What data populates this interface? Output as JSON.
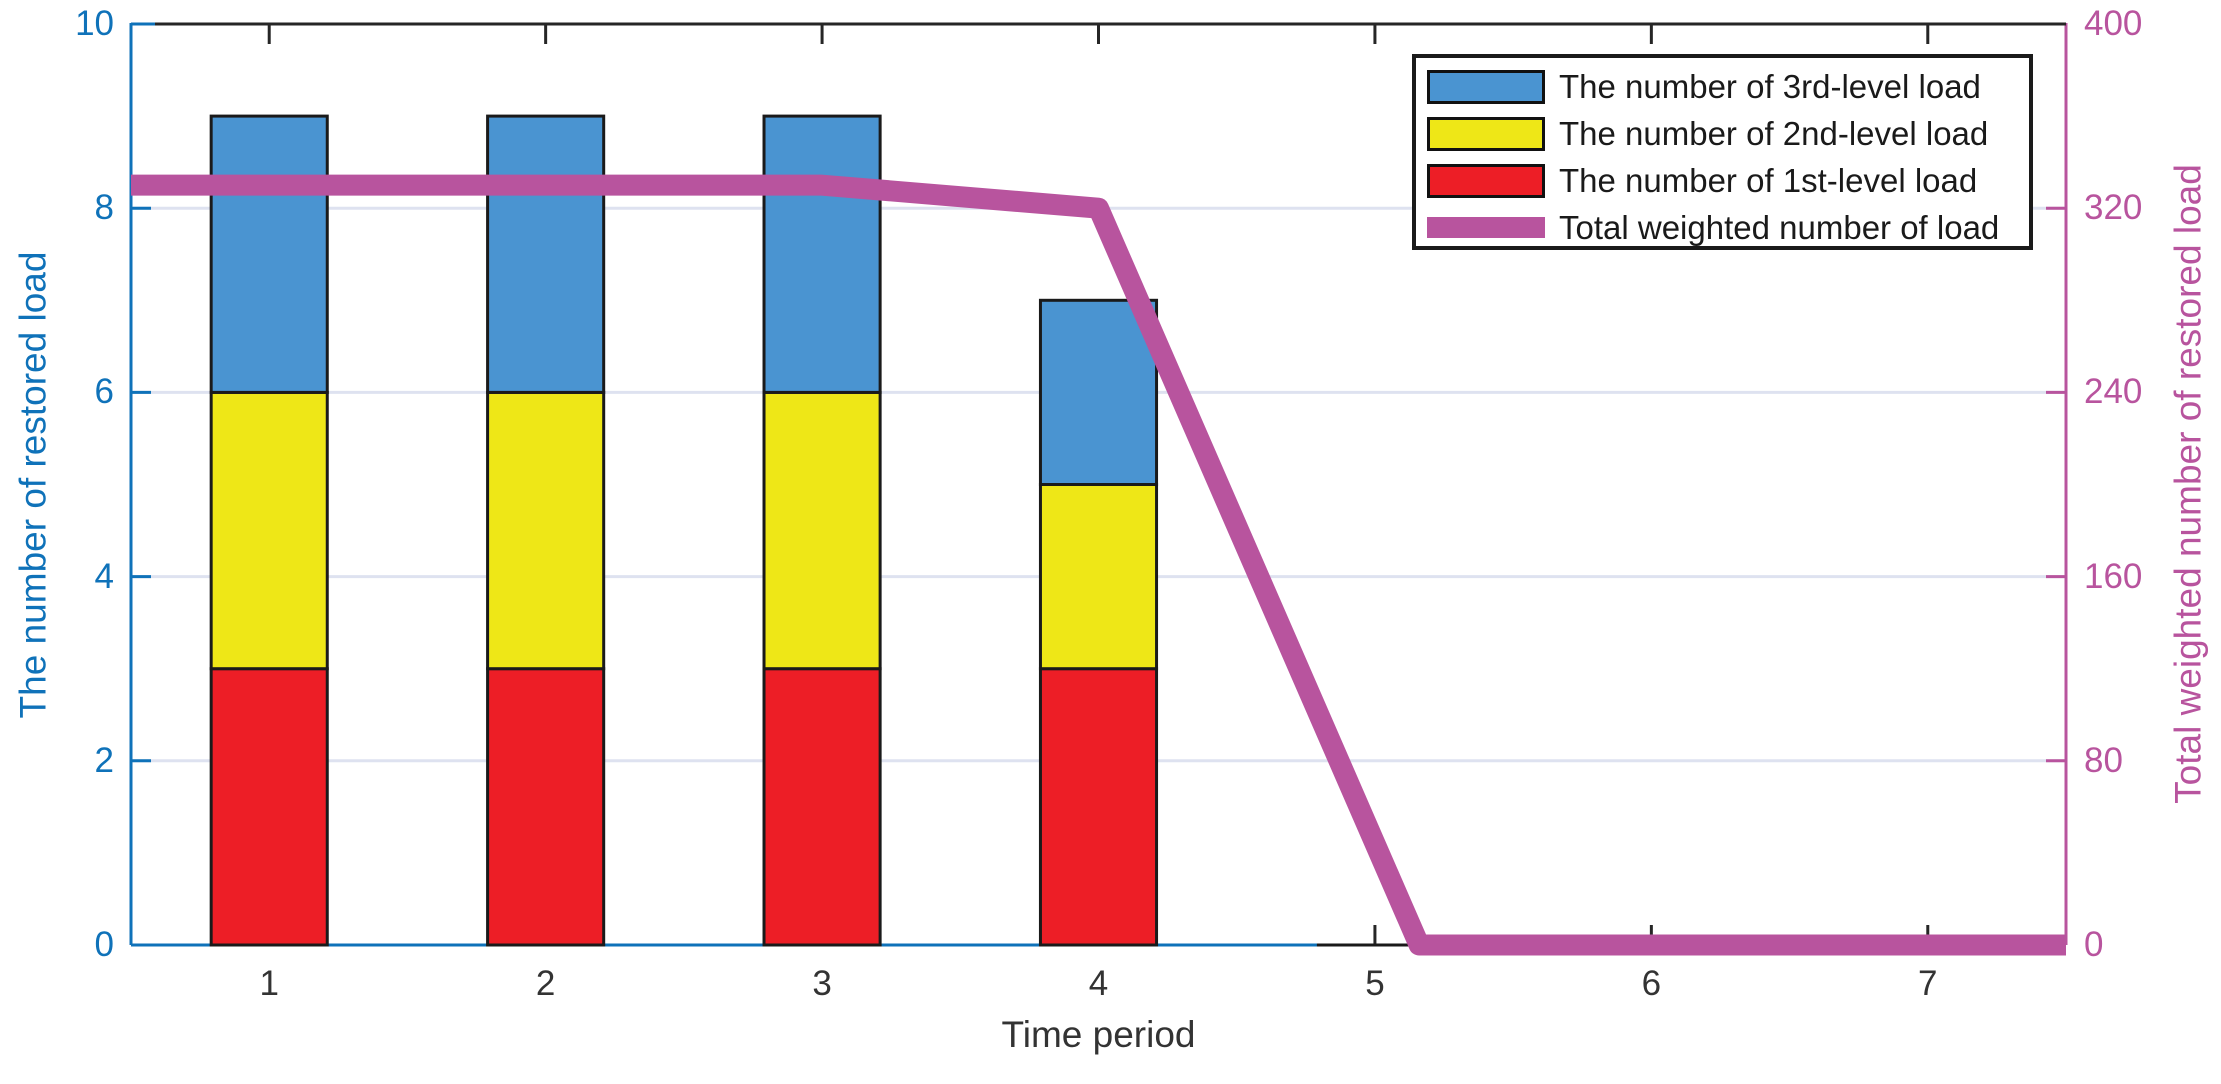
{
  "figure": {
    "background": "#FFFFFF"
  },
  "chart_data": {
    "type": "combo-stacked-bar-line",
    "title": "",
    "xlabel": "Time period",
    "x_axis": {
      "range": [
        0.5,
        7.5
      ],
      "tick_values": [
        1,
        2,
        3,
        4,
        5,
        6,
        7
      ],
      "tick_labels": [
        "1",
        "2",
        "3",
        "4",
        "5",
        "6",
        "7"
      ],
      "tick_color": "#262626"
    },
    "left_axis": {
      "label": "The number of restored load",
      "range": [
        0,
        10
      ],
      "tick_values": [
        0,
        2,
        4,
        6,
        8,
        10
      ],
      "tick_labels": [
        "0",
        "2",
        "4",
        "6",
        "8",
        "10"
      ],
      "color": "#0F72B9"
    },
    "right_axis": {
      "label": "Total weighted number of restored load",
      "range": [
        0,
        400
      ],
      "tick_values": [
        0,
        80,
        160,
        240,
        320,
        400
      ],
      "tick_labels": [
        "0",
        "80",
        "160",
        "240",
        "320",
        "400"
      ],
      "color": "#B8549E"
    },
    "grid": {
      "color": "#DEE2F0",
      "y_values": [
        2,
        4,
        6,
        8
      ],
      "vertical": false
    },
    "bars": {
      "categories": [
        1,
        2,
        3,
        4,
        5,
        6,
        7
      ],
      "bar_width_fraction": 0.42,
      "edge_color": "#1A1A1A",
      "stack_order": "bottom-to-top",
      "series": [
        {
          "name": "The number of 1st-level load",
          "color": "#ED1E26",
          "values": [
            3,
            3,
            3,
            3,
            0,
            0,
            0
          ]
        },
        {
          "name": "The number of 2nd-level load",
          "color": "#EEE717",
          "values": [
            3,
            3,
            3,
            2,
            0,
            0,
            0
          ]
        },
        {
          "name": "The number of 3rd-level load",
          "color": "#4A94D1",
          "values": [
            3,
            3,
            3,
            2,
            0,
            0,
            0
          ]
        }
      ]
    },
    "line_series": {
      "name": "Total weighted number of load",
      "axis": "right",
      "color": "#B8549E",
      "line_width": 21,
      "points": [
        [
          0.5,
          330
        ],
        [
          1,
          330
        ],
        [
          2,
          330
        ],
        [
          3,
          330
        ],
        [
          4,
          320
        ],
        [
          5.16,
          0
        ],
        [
          6,
          0
        ],
        [
          7,
          0
        ],
        [
          7.5,
          0
        ]
      ]
    },
    "legend": {
      "position": "top-right",
      "entries": [
        {
          "label": "The number of 3rd-level load",
          "swatch": "bar",
          "color": "#4A94D1"
        },
        {
          "label": "The number of 2nd-level load",
          "swatch": "bar",
          "color": "#EEE717"
        },
        {
          "label": "The number of 1st-level load",
          "swatch": "bar",
          "color": "#ED1E26"
        },
        {
          "label": "Total weighted number of load",
          "swatch": "line",
          "color": "#B8549E"
        }
      ]
    }
  }
}
